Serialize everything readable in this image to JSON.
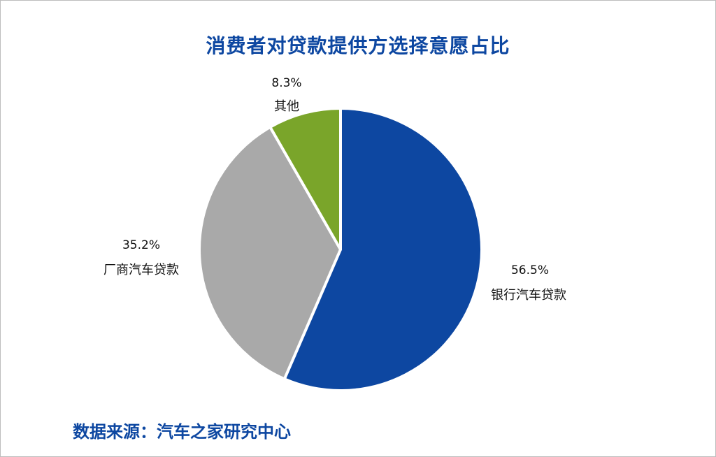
{
  "title": "消费者对贷款提供方选择意愿占比",
  "source": "数据来源：汽车之家研究中心",
  "chart_data": {
    "type": "pie",
    "title": "消费者对贷款提供方选择意愿占比",
    "slices": [
      {
        "label": "银行汽车贷款",
        "value": 56.5,
        "display": "56.5%",
        "color": "#0d47a1"
      },
      {
        "label": "厂商汽车贷款",
        "value": 35.2,
        "display": "35.2%",
        "color": "#a9a9a9"
      },
      {
        "label": "其他",
        "value": 8.3,
        "display": "8.3%",
        "color": "#7aa52a"
      }
    ]
  }
}
